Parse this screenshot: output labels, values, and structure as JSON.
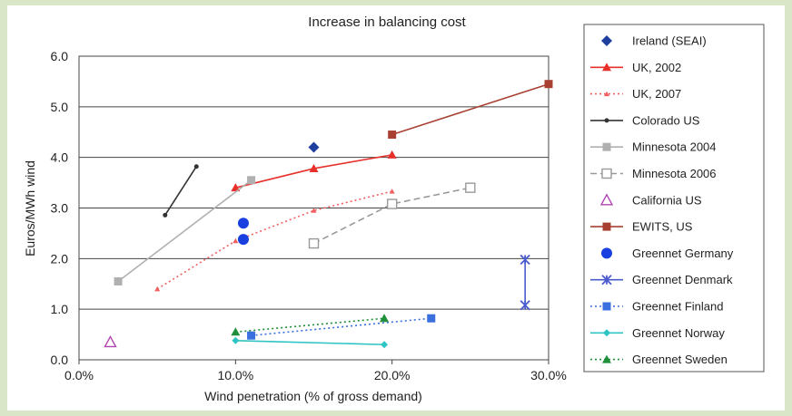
{
  "chart_data": {
    "type": "scatter",
    "title": "Increase in balancing cost",
    "xlabel": "Wind penetration (% of gross demand)",
    "ylabel": "Euros/MWh wind",
    "xlim": [
      0,
      30
    ],
    "ylim": [
      0,
      6
    ],
    "x_ticks": [
      "0.0%",
      "10.0%",
      "20.0%",
      "30.0%"
    ],
    "y_ticks": [
      "0.0",
      "1.0",
      "2.0",
      "3.0",
      "4.0",
      "5.0",
      "6.0"
    ],
    "grid": "horizontal",
    "legend_position": "right",
    "series": [
      {
        "name": "Ireland (SEAI)",
        "color": "#1f3f9f",
        "marker": "diamond",
        "line": "none",
        "points": [
          [
            15,
            4.2
          ]
        ]
      },
      {
        "name": "UK, 2002",
        "color": "#e8302b",
        "marker": "triangle",
        "line": "solid",
        "points": [
          [
            10,
            3.4
          ],
          [
            15,
            3.78
          ],
          [
            20,
            4.05
          ]
        ]
      },
      {
        "name": "UK, 2007",
        "color": "#f06060",
        "marker": "small-triangle",
        "line": "dotted",
        "points": [
          [
            5,
            1.4
          ],
          [
            10,
            2.35
          ],
          [
            15,
            2.95
          ],
          [
            20,
            3.33
          ]
        ]
      },
      {
        "name": "Colorado US",
        "color": "#333333",
        "marker": "dot",
        "line": "solid",
        "points": [
          [
            5.5,
            2.86
          ],
          [
            7.5,
            3.82
          ]
        ]
      },
      {
        "name": "Minnesota 2004",
        "color": "#b0b0b0",
        "marker": "square",
        "line": "solid",
        "points": [
          [
            2.5,
            1.55
          ],
          [
            11,
            3.55
          ]
        ]
      },
      {
        "name": "Minnesota 2006",
        "color": "#999999",
        "marker": "open-square",
        "line": "dashed",
        "points": [
          [
            15,
            2.3
          ],
          [
            20,
            3.08
          ],
          [
            25,
            3.4
          ]
        ]
      },
      {
        "name": "California US",
        "color": "#b044b0",
        "marker": "open-triangle",
        "line": "none",
        "points": [
          [
            2,
            0.35
          ]
        ]
      },
      {
        "name": "EWITS, US",
        "color": "#a84032",
        "marker": "square",
        "line": "solid",
        "points": [
          [
            20,
            4.45
          ],
          [
            30,
            5.45
          ]
        ]
      },
      {
        "name": "Greennet Germany",
        "color": "#1a3fe0",
        "marker": "circle",
        "line": "none",
        "points": [
          [
            10.5,
            2.7
          ],
          [
            10.5,
            2.38
          ]
        ]
      },
      {
        "name": "Greennet Denmark",
        "color": "#4a5acc",
        "marker": "star",
        "line": "solid",
        "points": [
          [
            28.5,
            1.98
          ],
          [
            28.5,
            1.08
          ]
        ]
      },
      {
        "name": "Greennet Finland",
        "color": "#3a6fe0",
        "marker": "square",
        "line": "dotted",
        "points": [
          [
            11,
            0.48
          ],
          [
            22.5,
            0.82
          ]
        ]
      },
      {
        "name": "Greennet Norway",
        "color": "#2ec4c4",
        "marker": "small-diamond",
        "line": "solid",
        "points": [
          [
            10,
            0.38
          ],
          [
            19.5,
            0.3
          ]
        ]
      },
      {
        "name": "Greennet Sweden",
        "color": "#1f8f3a",
        "marker": "triangle",
        "line": "dotted",
        "points": [
          [
            10,
            0.55
          ],
          [
            19.5,
            0.82
          ]
        ]
      }
    ]
  }
}
